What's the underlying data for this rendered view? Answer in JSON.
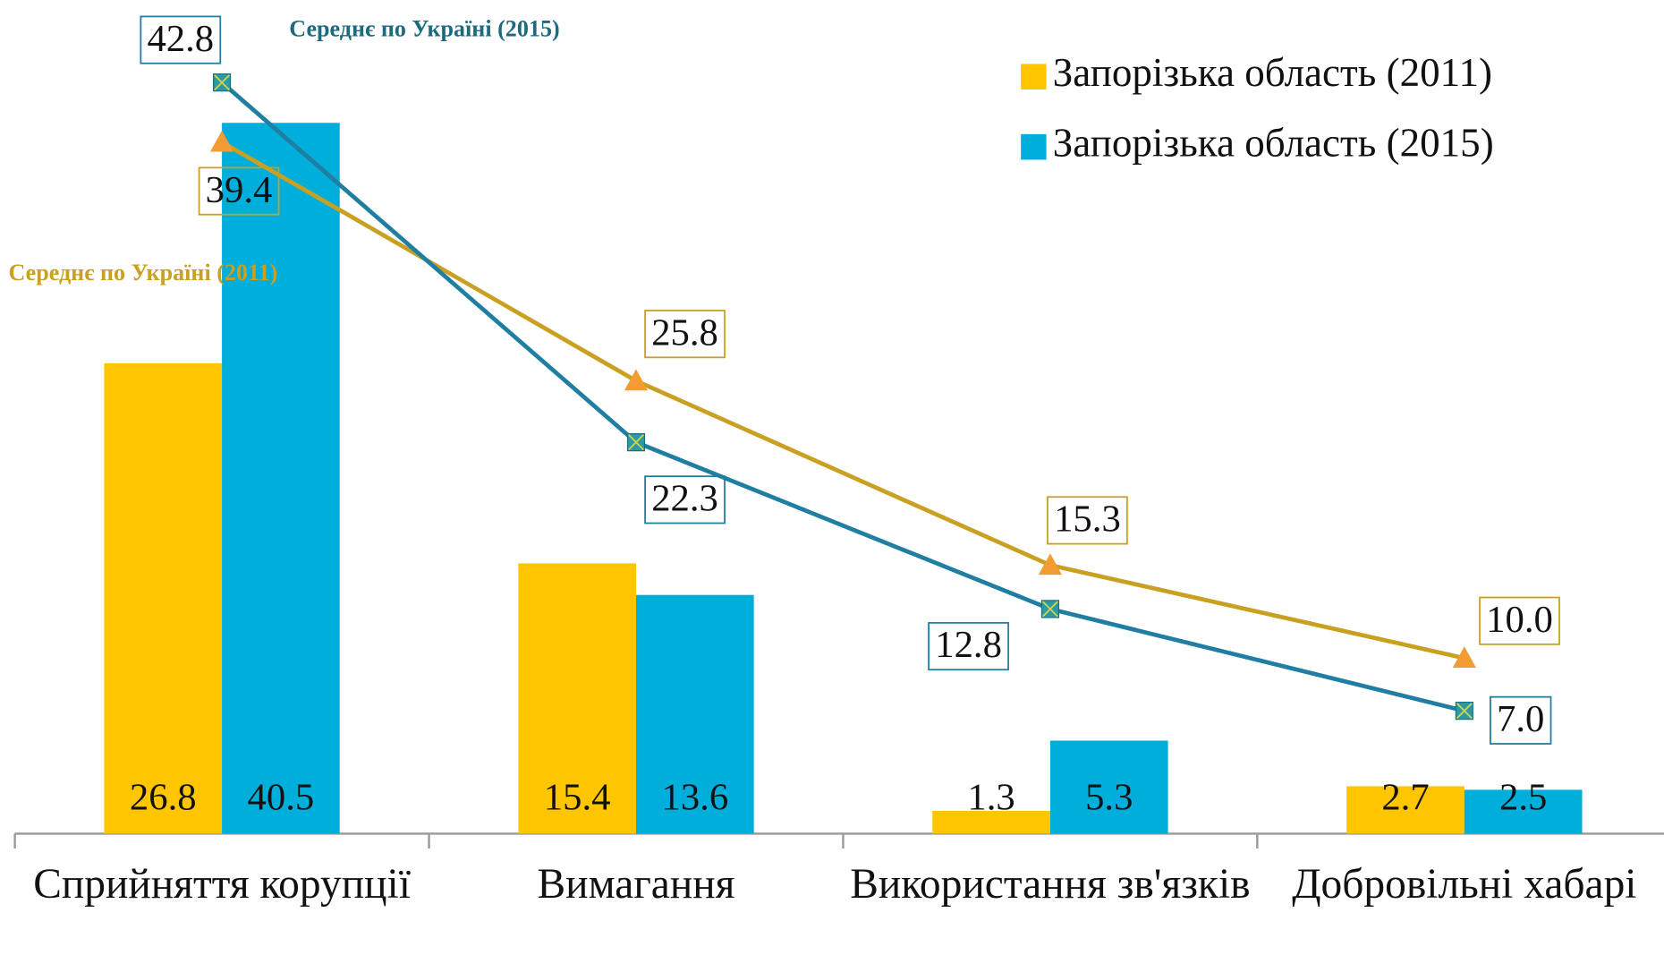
{
  "chart_data": {
    "type": "bar",
    "categories": [
      "Сприйняття корупції",
      "Вимагання",
      "Використання зв'язків",
      "Добровільні хабарі"
    ],
    "ylim": [
      0,
      47.5
    ],
    "legend": "top-right",
    "series": [
      {
        "name": "Запорізька область (2011)",
        "type": "bar",
        "color": "#FFC600",
        "values": [
          26.8,
          15.4,
          1.3,
          2.7
        ]
      },
      {
        "name": "Запорізька область (2015)",
        "type": "bar",
        "color": "#00AEDB",
        "values": [
          40.5,
          13.6,
          5.3,
          2.5
        ]
      },
      {
        "name": "Середнє по Україні (2011)",
        "type": "line",
        "color": "#C9A021",
        "marker": "triangle",
        "marker_color": "#F39C34",
        "values": [
          39.4,
          25.8,
          15.3,
          10.0
        ],
        "value_labels": [
          "39.4",
          "25.8",
          "15.3",
          "10.0"
        ]
      },
      {
        "name": "Середнє по Україні (2015)",
        "type": "line",
        "color": "#1F7EA1",
        "marker": "square",
        "marker_color": "#2A9AA5",
        "values": [
          42.8,
          22.3,
          12.8,
          7.0
        ],
        "value_labels": [
          "42.8",
          "22.3",
          "12.8",
          "7.0"
        ]
      }
    ]
  }
}
